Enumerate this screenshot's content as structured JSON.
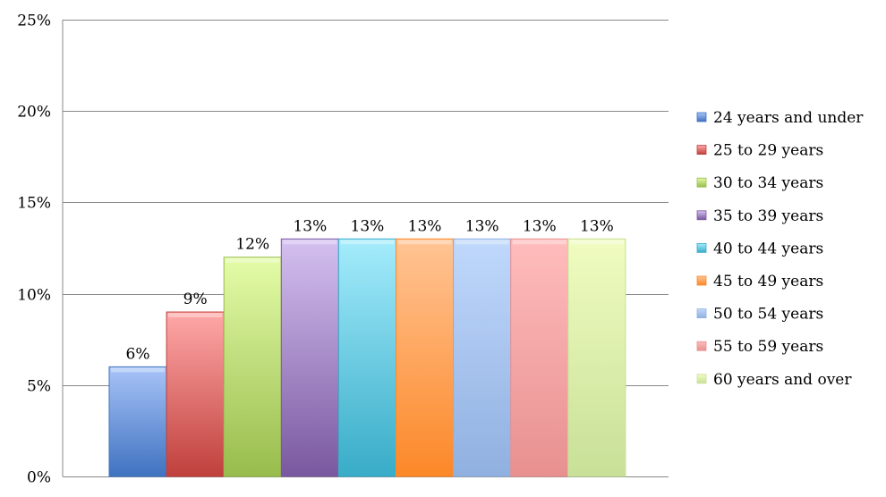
{
  "chart_data": {
    "type": "bar",
    "title": "",
    "xlabel": "",
    "ylabel": "",
    "ylim": [
      0,
      25
    ],
    "yticks": [
      "0%",
      "5%",
      "10%",
      "15%",
      "20%",
      "25%"
    ],
    "ytick_values": [
      0,
      5,
      10,
      15,
      20,
      25
    ],
    "grid": true,
    "legend_position": "right",
    "categories": [
      "24 years and under",
      "25 to 29 years",
      "30 to 34 years",
      "35 to 39 years",
      "40 to 44 years",
      "45 to 49 years",
      "50 to 54 years",
      "55 to 59 years",
      "60 years and over"
    ],
    "values": [
      6,
      9,
      12,
      13,
      13,
      13,
      13,
      13,
      13
    ],
    "data_labels": [
      "6%",
      "9%",
      "12%",
      "13%",
      "13%",
      "13%",
      "13%",
      "13%",
      "13%"
    ],
    "colors": [
      [
        "#a8c4f8",
        "#3f72c0"
      ],
      [
        "#ffa8a8",
        "#c0403c"
      ],
      [
        "#e4fca8",
        "#98bc4c"
      ],
      [
        "#d4c0f0",
        "#7a58a0"
      ],
      [
        "#a4ecfc",
        "#38acc8"
      ],
      [
        "#ffc494",
        "#fc8828"
      ],
      [
        "#c0d8fc",
        "#90b0e0"
      ],
      [
        "#ffbcbc",
        "#e89090"
      ],
      [
        "#f0fcc0",
        "#c8e098"
      ]
    ]
  }
}
